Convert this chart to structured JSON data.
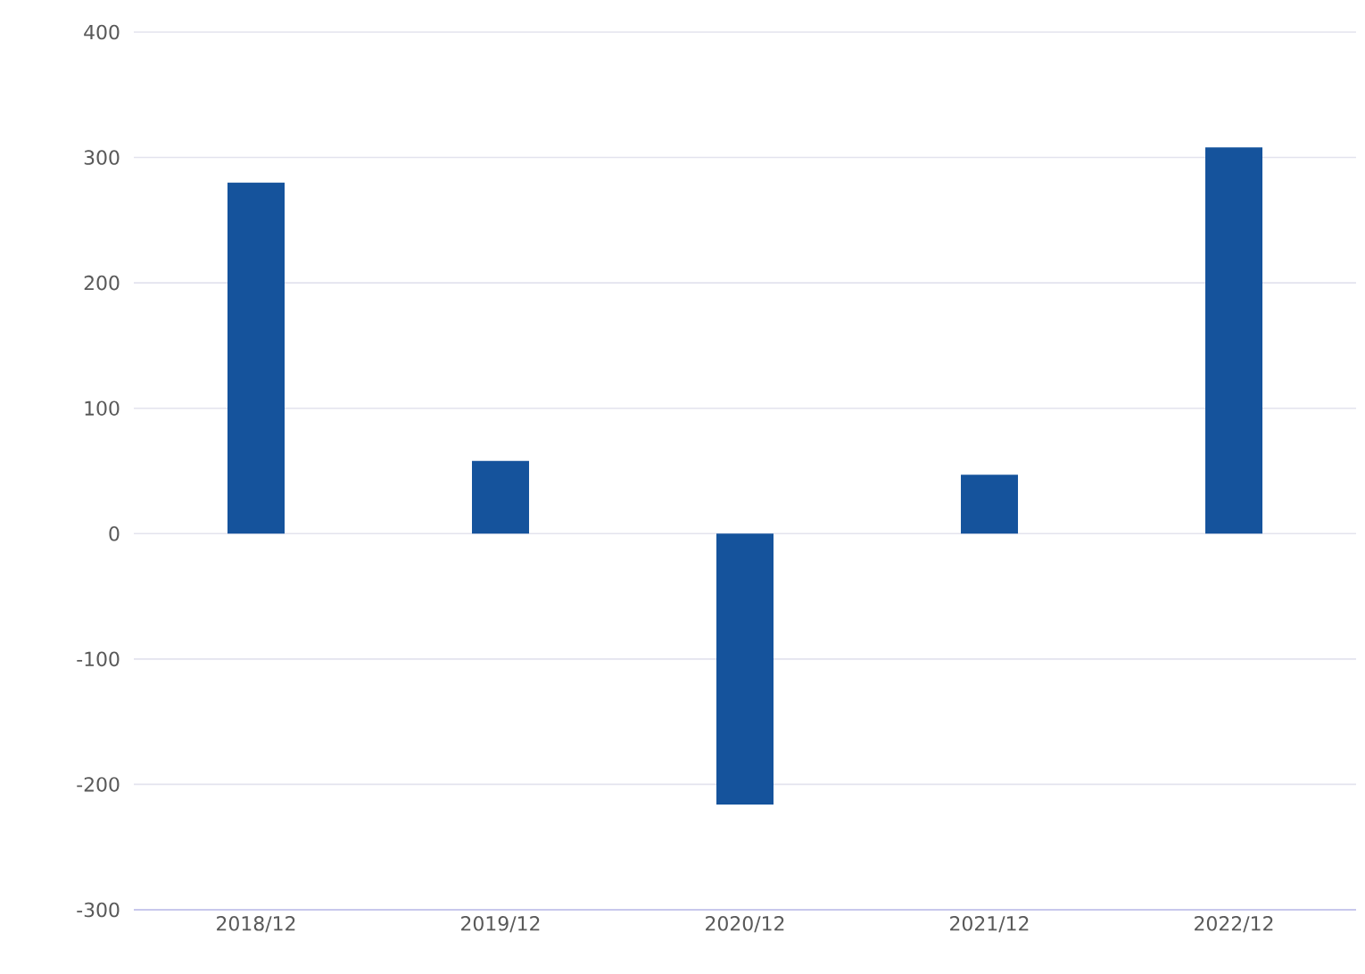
{
  "chart_data": {
    "type": "bar",
    "categories": [
      "2018/12",
      "2019/12",
      "2020/12",
      "2021/12",
      "2022/12"
    ],
    "values": [
      280,
      58,
      -216,
      47,
      308
    ],
    "color": "#15539c",
    "ylim": [
      -300,
      400
    ],
    "yticks": [
      -300,
      -200,
      -100,
      0,
      100,
      200,
      300,
      400
    ],
    "grid": "y"
  }
}
